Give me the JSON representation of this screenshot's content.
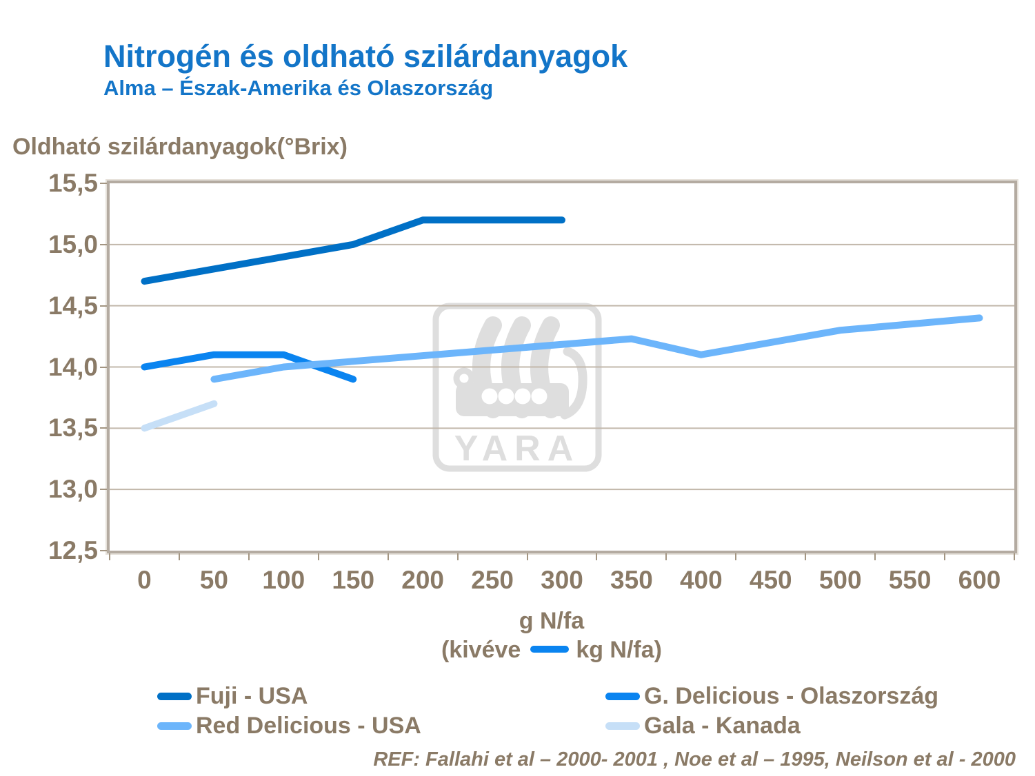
{
  "header": {
    "title": "Nitrogén és oldható szilárdanyagok",
    "subtitle": "Alma – Észak-Amerika és Olaszország"
  },
  "y_axis_title": "Oldható szilárdanyagok(°Brix)",
  "x_axis": {
    "title": "g N/fa",
    "note_prefix": "(kivéve",
    "note_suffix": "kg N/fa)"
  },
  "watermark": "YARA",
  "footer": "REF: Fallahi et al – 2000- 2001 , Noe et al – 1995, Neilson et al - 2000",
  "colors": {
    "title": "#1375C8",
    "axis_text": "#8A7A66",
    "grid": "#C2B8AB",
    "frame": "#B4ABA1",
    "watermark": "#DEDEDE",
    "kg_dash": "#0A84F0"
  },
  "chart_data": {
    "type": "line",
    "title": "Nitrogén és oldható szilárdanyagok",
    "subtitle": "Alma – Észak-Amerika és Olaszország",
    "xlabel": "g N/fa (kivéve kg N/fa)",
    "ylabel": "Oldható szilárdanyagok (°Brix)",
    "grid": "horizontal",
    "legend_position": "bottom-two-columns",
    "ylim": [
      12.5,
      15.5
    ],
    "x_ticks": [
      0,
      50,
      100,
      150,
      200,
      250,
      300,
      350,
      400,
      450,
      500,
      550,
      600
    ],
    "y_ticks": [
      {
        "label": "15,5",
        "value": 15.5
      },
      {
        "label": "15,0",
        "value": 15.0
      },
      {
        "label": "14,5",
        "value": 14.5
      },
      {
        "label": "14,0",
        "value": 14.0
      },
      {
        "label": "13,5",
        "value": 13.5
      },
      {
        "label": "13,0",
        "value": 13.0
      },
      {
        "label": "12,5",
        "value": 12.5
      }
    ],
    "series": [
      {
        "name": "Fuji - USA",
        "color": "#0070C6",
        "points": [
          [
            0,
            14.7
          ],
          [
            150,
            15.0
          ],
          [
            200,
            15.2
          ],
          [
            300,
            15.2
          ]
        ]
      },
      {
        "name": "G. Delicious - Olaszország",
        "color": "#0A84F0",
        "points": [
          [
            0,
            14.0
          ],
          [
            50,
            14.1
          ],
          [
            100,
            14.1
          ],
          [
            150,
            13.9
          ]
        ]
      },
      {
        "name": "Red Delicious - USA",
        "color": "#6CB5FB",
        "points": [
          [
            50,
            13.9
          ],
          [
            100,
            14.0
          ],
          [
            350,
            14.23
          ],
          [
            400,
            14.1
          ],
          [
            500,
            14.3
          ],
          [
            600,
            14.4
          ]
        ]
      },
      {
        "name": "Gala - Kanada",
        "color": "#C6DFF7",
        "points": [
          [
            0,
            13.5
          ],
          [
            50,
            13.7
          ]
        ]
      }
    ]
  },
  "legend": {
    "left": [
      "Fuji - USA",
      "Red Delicious - USA"
    ],
    "right": [
      "G. Delicious - Olaszország",
      "Gala - Kanada"
    ]
  }
}
